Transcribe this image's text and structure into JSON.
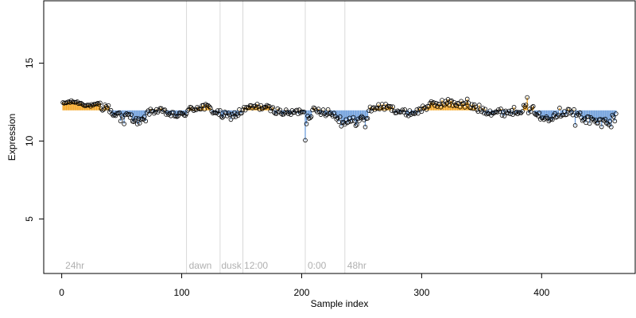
{
  "chart_data": {
    "type": "scatter",
    "xlabel": "Sample index",
    "ylabel": "Expression",
    "xlim": [
      -15,
      478
    ],
    "ylim": [
      1.5,
      19.0
    ],
    "x_ticks": [
      0,
      100,
      200,
      300,
      400
    ],
    "y_ticks": [
      5,
      10,
      15
    ],
    "baseline": 11.97,
    "colors": {
      "above": "#f5a623",
      "below": "#6f9fdc",
      "point_stroke": "#000000",
      "divider": "#d8d8d8",
      "phase_label": "#b0b0b0"
    },
    "phase_dividers": [
      104,
      132,
      151,
      203,
      236
    ],
    "phase_labels": [
      {
        "text": "24hr",
        "x": 3
      },
      {
        "text": "dawn",
        "x": 106
      },
      {
        "text": "dusk",
        "x": 133
      },
      {
        "text": "12:00",
        "x": 152
      },
      {
        "text": "0:00",
        "x": 205
      },
      {
        "text": "48hr",
        "x": 238
      }
    ],
    "segments": [
      {
        "start": 1,
        "end": 32,
        "mean": 12.4,
        "amp": 0.12,
        "noise": 0.08
      },
      {
        "start": 33,
        "end": 48,
        "mean": 11.95,
        "amp": 0.3,
        "noise": 0.18
      },
      {
        "start": 49,
        "end": 70,
        "mean": 11.45,
        "amp": 0.2,
        "noise": 0.22
      },
      {
        "start": 71,
        "end": 104,
        "mean": 11.8,
        "amp": 0.15,
        "noise": 0.18
      },
      {
        "start": 105,
        "end": 150,
        "mean": 11.9,
        "amp": 0.3,
        "noise": 0.25
      },
      {
        "start": 151,
        "end": 202,
        "mean": 12.0,
        "amp": 0.2,
        "noise": 0.2
      },
      {
        "start": 203,
        "end": 255,
        "mean": 11.6,
        "amp": 0.35,
        "noise": 0.3
      },
      {
        "start": 256,
        "end": 300,
        "mean": 12.0,
        "amp": 0.2,
        "noise": 0.2
      },
      {
        "start": 301,
        "end": 388,
        "mean": 12.15,
        "amp": 0.3,
        "noise": 0.25
      },
      {
        "start": 389,
        "end": 405,
        "mean": 11.7,
        "amp": 0.3,
        "noise": 0.25
      },
      {
        "start": 406,
        "end": 462,
        "mean": 11.55,
        "amp": 0.35,
        "noise": 0.3
      }
    ],
    "outliers": [
      {
        "x": 203,
        "y": 10.05
      },
      {
        "x": 204,
        "y": 11.1
      },
      {
        "x": 253,
        "y": 10.9
      },
      {
        "x": 233,
        "y": 10.95
      },
      {
        "x": 338,
        "y": 12.7
      },
      {
        "x": 388,
        "y": 12.8
      },
      {
        "x": 52,
        "y": 11.1
      },
      {
        "x": 428,
        "y": 11.0
      },
      {
        "x": 458,
        "y": 10.9
      }
    ]
  }
}
